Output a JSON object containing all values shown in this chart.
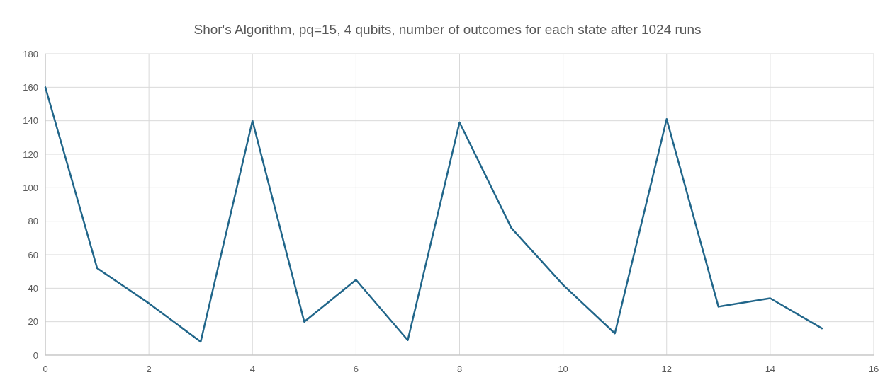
{
  "chart_data": {
    "type": "line",
    "title": "Shor's Algorithm, pq=15, 4 qubits, number of outcomes for each state after 1024 runs",
    "x": [
      0,
      1,
      2,
      3,
      4,
      5,
      6,
      7,
      8,
      9,
      10,
      11,
      12,
      13,
      14,
      15
    ],
    "series": [
      {
        "color": "#21668a",
        "values": [
          160,
          52,
          31,
          8,
          140,
          20,
          45,
          9,
          139,
          76,
          42,
          13,
          141,
          29,
          34,
          16
        ]
      }
    ],
    "xlim": [
      0,
      16
    ],
    "xticks": [
      0,
      2,
      4,
      6,
      8,
      10,
      12,
      14,
      16
    ],
    "ylim": [
      0,
      180
    ],
    "yticks": [
      0,
      20,
      40,
      60,
      80,
      100,
      120,
      140,
      160,
      180
    ],
    "grid": true,
    "marker": "none",
    "line_style": "solid"
  }
}
